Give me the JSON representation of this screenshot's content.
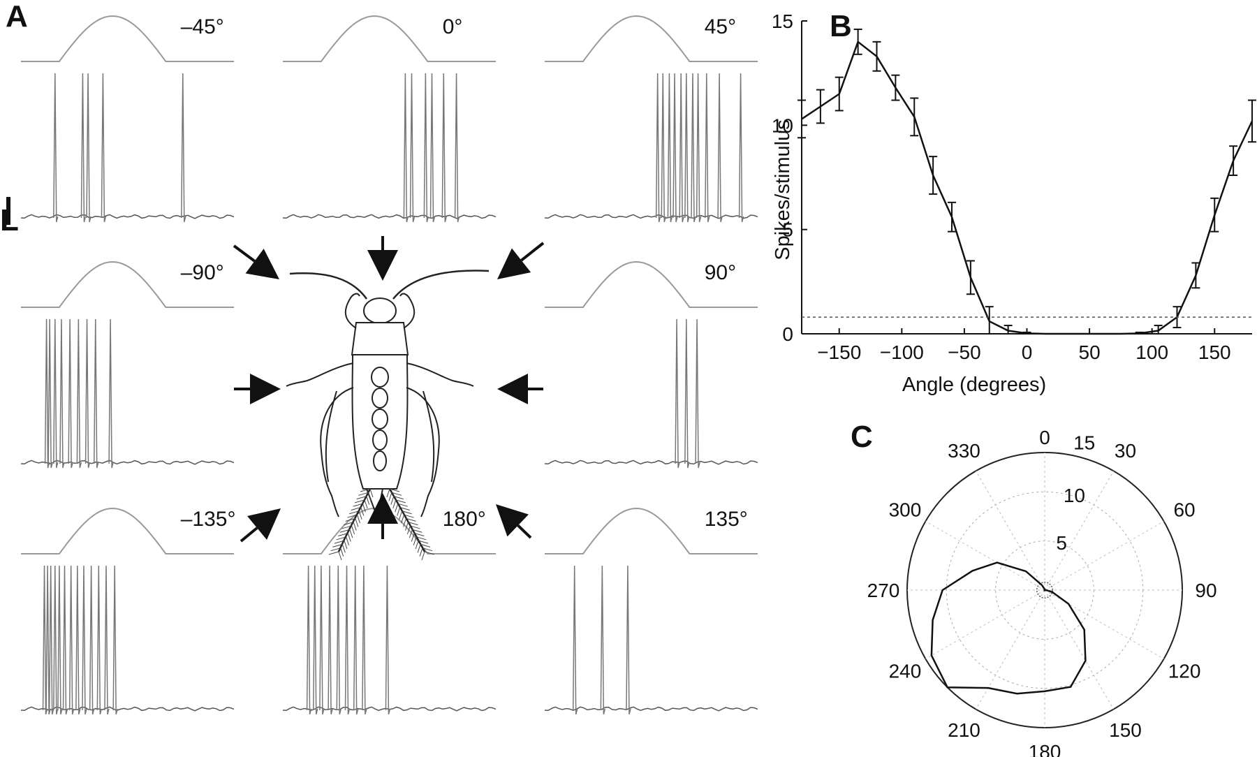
{
  "panels": {
    "a_label": "A",
    "b_label": "B",
    "c_label": "C",
    "scale_bar_label": "L"
  },
  "traces": [
    {
      "angle_label": "–45°",
      "spike_times": [
        0.16,
        0.29,
        0.315,
        0.385,
        0.76
      ]
    },
    {
      "angle_label": "0°",
      "spike_times": [
        0.575,
        0.605,
        0.67,
        0.7,
        0.755,
        0.815
      ]
    },
    {
      "angle_label": "45°",
      "spike_times": [
        0.53,
        0.555,
        0.585,
        0.61,
        0.64,
        0.665,
        0.695,
        0.72,
        0.76,
        0.82,
        0.92
      ]
    },
    {
      "angle_label": "–90°",
      "spike_times": [
        0.12,
        0.135,
        0.16,
        0.19,
        0.23,
        0.27,
        0.31,
        0.35,
        0.42
      ]
    },
    {
      "angle_label": "90°",
      "spike_times": [
        0.62,
        0.665,
        0.715
      ]
    },
    {
      "angle_label": "–135°",
      "spike_times": [
        0.11,
        0.125,
        0.14,
        0.16,
        0.18,
        0.205,
        0.235,
        0.265,
        0.295,
        0.33,
        0.365,
        0.4,
        0.44
      ]
    },
    {
      "angle_label": "180°",
      "spike_times": [
        0.12,
        0.15,
        0.18,
        0.22,
        0.26,
        0.3,
        0.34,
        0.38,
        0.49
      ]
    },
    {
      "angle_label": "135°",
      "spike_times": [
        0.14,
        0.27,
        0.39
      ]
    }
  ],
  "chart_data": [
    {
      "type": "line",
      "xlabel": "Angle (degrees)",
      "ylabel": "Spikes/stimulus",
      "xlim": [
        -180,
        180
      ],
      "ylim": [
        0,
        15
      ],
      "xticks": [
        -150,
        -100,
        -50,
        0,
        50,
        100,
        150
      ],
      "yticks": [
        0,
        5,
        10,
        15
      ],
      "x": [
        -180,
        -165,
        -150,
        -135,
        -120,
        -105,
        -90,
        -75,
        -60,
        -45,
        -30,
        -15,
        0,
        15,
        30,
        45,
        60,
        75,
        90,
        105,
        120,
        135,
        150,
        165,
        180
      ],
      "y": [
        10.3,
        10.9,
        11.5,
        14.0,
        13.3,
        11.8,
        10.4,
        7.6,
        5.6,
        2.7,
        0.6,
        0.15,
        0.02,
        0.0,
        0.0,
        0.0,
        0.0,
        0.0,
        0.02,
        0.15,
        0.8,
        2.8,
        5.7,
        8.3,
        10.2
      ],
      "error": [
        0.9,
        0.8,
        0.8,
        0.6,
        0.7,
        0.6,
        0.9,
        0.9,
        0.7,
        0.8,
        0.7,
        0.25,
        0.05,
        0.0,
        0.0,
        0.0,
        0.0,
        0.0,
        0.05,
        0.25,
        0.5,
        0.6,
        0.8,
        0.7,
        1.0
      ],
      "threshold": 0.8,
      "grid": false
    },
    {
      "type": "polar",
      "angle_labels": [
        "0",
        "15",
        "30",
        "60",
        "90",
        "120",
        "150",
        "180",
        "210",
        "240",
        "270",
        "300",
        "330"
      ],
      "radial_ticks": [
        5,
        10
      ],
      "rmax": 14,
      "angles": [
        0,
        15,
        30,
        45,
        60,
        75,
        90,
        105,
        120,
        135,
        150,
        165,
        180,
        195,
        210,
        225,
        240,
        255,
        270,
        285,
        300,
        315,
        330,
        345
      ],
      "values": [
        0.02,
        0.0,
        0.0,
        0.0,
        0.0,
        0.02,
        0.15,
        0.8,
        2.8,
        5.7,
        8.3,
        10.2,
        10.3,
        10.9,
        11.5,
        14.0,
        13.3,
        11.8,
        10.4,
        7.6,
        5.6,
        2.7,
        0.6,
        0.15
      ],
      "grid": true
    }
  ]
}
